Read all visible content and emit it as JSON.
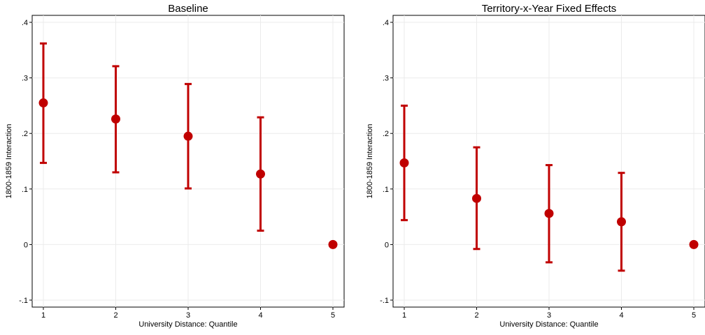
{
  "chart_data": [
    {
      "type": "scatter",
      "title": "Baseline",
      "xlabel": "University Distance: Quantile",
      "ylabel": "1800-1859 Interaction",
      "xlim": [
        1,
        5
      ],
      "ylim": [
        -0.1,
        0.4
      ],
      "xticks": [
        1,
        2,
        3,
        4,
        5
      ],
      "yticks": [
        -0.1,
        0,
        0.1,
        0.2,
        0.3,
        0.4
      ],
      "ytick_labels": [
        "-.1",
        "0",
        ".1",
        ".2",
        ".3",
        ".4"
      ],
      "grid": true,
      "series": [
        {
          "color": "#c00000",
          "x": [
            1,
            2,
            3,
            4,
            5
          ],
          "y": [
            0.255,
            0.226,
            0.195,
            0.127,
            0.0
          ],
          "ci_low": [
            0.147,
            0.13,
            0.101,
            0.025,
            0.0
          ],
          "ci_high": [
            0.362,
            0.321,
            0.289,
            0.229,
            0.0
          ]
        }
      ]
    },
    {
      "type": "scatter",
      "title": "Territory-x-Year Fixed Effects",
      "xlabel": "University Distance: Quantile",
      "ylabel": "1800-1859 Interaction",
      "xlim": [
        1,
        5
      ],
      "ylim": [
        -0.1,
        0.4
      ],
      "xticks": [
        1,
        2,
        3,
        4,
        5
      ],
      "yticks": [
        -0.1,
        0,
        0.1,
        0.2,
        0.3,
        0.4
      ],
      "ytick_labels": [
        "-.1",
        "0",
        ".1",
        ".2",
        ".3",
        ".4"
      ],
      "grid": true,
      "series": [
        {
          "color": "#c00000",
          "x": [
            1,
            2,
            3,
            4,
            5
          ],
          "y": [
            0.147,
            0.083,
            0.056,
            0.041,
            0.0
          ],
          "ci_low": [
            0.044,
            -0.008,
            -0.032,
            -0.047,
            0.0
          ],
          "ci_high": [
            0.25,
            0.175,
            0.143,
            0.129,
            0.0
          ]
        }
      ]
    }
  ]
}
